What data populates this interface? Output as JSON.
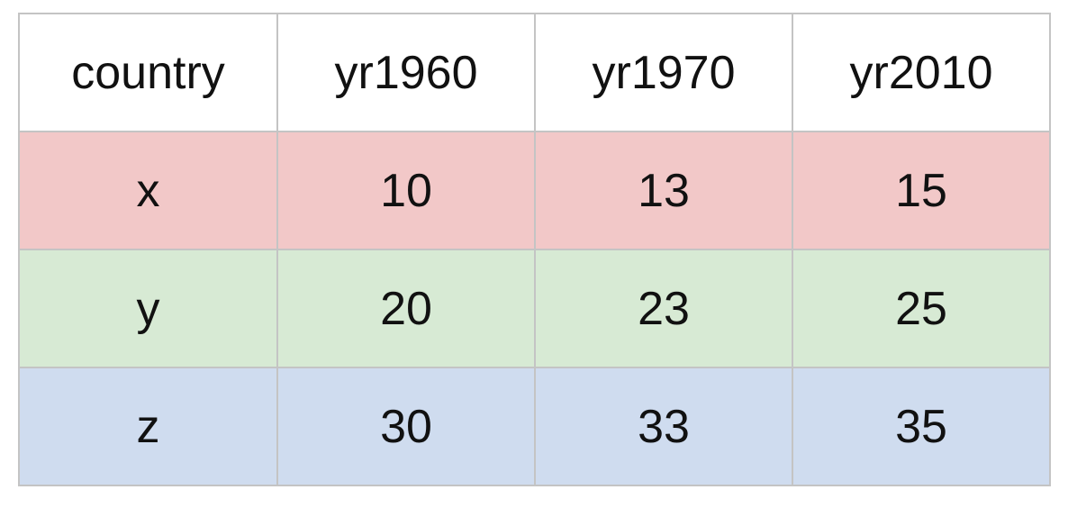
{
  "chart_data": {
    "type": "table",
    "columns": [
      "country",
      "yr1960",
      "yr1970",
      "yr2010"
    ],
    "rows": [
      {
        "country": "x",
        "values": [
          10,
          13,
          15
        ],
        "color": "#f2c8c8"
      },
      {
        "country": "y",
        "values": [
          20,
          23,
          25
        ],
        "color": "#d7ead4"
      },
      {
        "country": "z",
        "values": [
          30,
          33,
          35
        ],
        "color": "#cfdcef"
      }
    ]
  }
}
